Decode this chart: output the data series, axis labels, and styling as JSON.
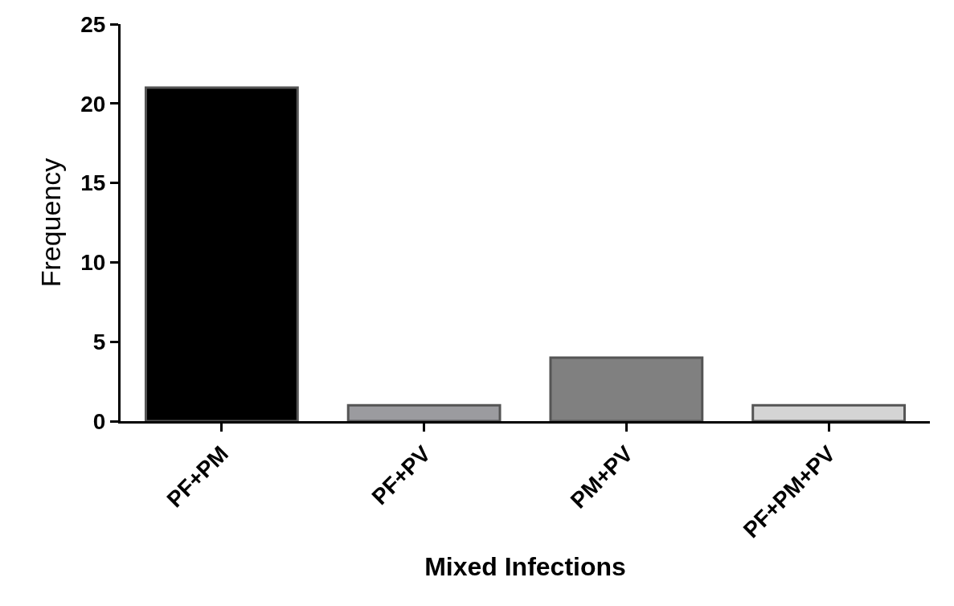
{
  "chart_data": {
    "type": "bar",
    "xlabel": "Mixed Infections",
    "ylabel": "Frequency",
    "categories": [
      "PF+PM",
      "PF+PV",
      "PM+PV",
      "PF+PM+PV"
    ],
    "values": [
      21,
      1,
      4,
      1
    ],
    "colors": [
      "#000000",
      "#9b9b9f",
      "#808080",
      "#d4d4d4"
    ],
    "ylim": [
      0,
      25
    ],
    "yticks": [
      0,
      5,
      10,
      15,
      20,
      25
    ]
  }
}
